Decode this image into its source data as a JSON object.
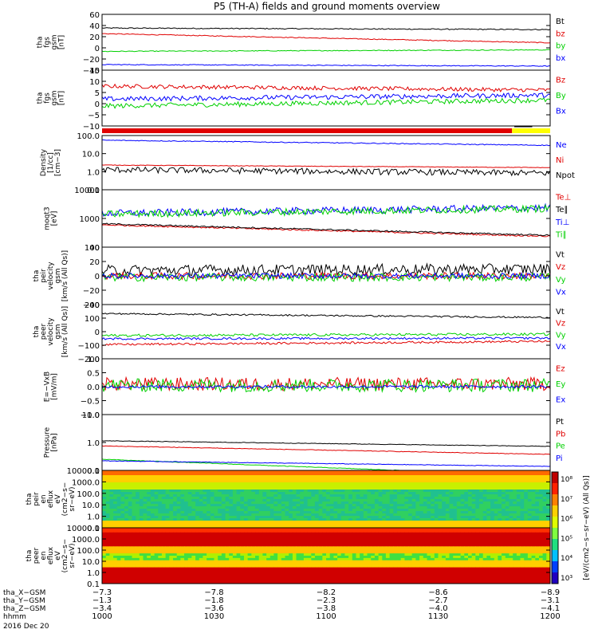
{
  "title": "P5 (TH-A) fields and ground moments overview",
  "colors": {
    "black": "#000000",
    "red": "#e00000",
    "green": "#00d000",
    "blue": "#0000ff",
    "yellow": "#ffff00"
  },
  "chart_data": [
    {
      "type": "line",
      "ylabel": [
        "tha",
        "fgs",
        "gsm",
        "[nT]"
      ],
      "yticks": [
        "60",
        "40",
        "20",
        "0",
        "−20",
        "−40"
      ],
      "ylim": [
        -45,
        65
      ],
      "series": [
        {
          "name": "Bt",
          "color": "black",
          "base": 38,
          "noise": 1,
          "trend": -3
        },
        {
          "name": "bz",
          "color": "red",
          "base": 27,
          "noise": 0.8,
          "trend": -18
        },
        {
          "name": "by",
          "color": "green",
          "base": -8,
          "noise": 0.8,
          "trend": 3
        },
        {
          "name": "bx",
          "color": "blue",
          "base": -34,
          "noise": 0.8,
          "trend": -3
        }
      ]
    },
    {
      "type": "line",
      "ylabel": [
        "tha",
        "fgs",
        "gsm",
        "[nT]"
      ],
      "yticks": [
        "15",
        "10",
        "5",
        "0",
        "−5",
        "−10"
      ],
      "ylim": [
        -13,
        15
      ],
      "series": [
        {
          "name": "Bz",
          "color": "red",
          "base": 7,
          "noise": 1,
          "trend": -2
        },
        {
          "name": "By",
          "color": "green",
          "base": -3,
          "noise": 1.2,
          "trend": 3
        },
        {
          "name": "Bx",
          "color": "blue",
          "base": 0.5,
          "noise": 1.2,
          "trend": 2
        }
      ]
    },
    {
      "type": "line",
      "ylabel": [
        "Density",
        "[1/cc]",
        "[cm−3]"
      ],
      "yticks": [
        "100.0",
        "10.0",
        "1.0",
        "0.1"
      ],
      "log": true,
      "ylim": [
        0.1,
        150
      ],
      "series": [
        {
          "name": "Ne",
          "color": "blue",
          "base": 80,
          "noise": 0.05,
          "trend": -0.3
        },
        {
          "name": "Ni",
          "color": "red",
          "base": 2.8,
          "noise": 0.03,
          "trend": -0.15
        },
        {
          "name": "Npot",
          "color": "black",
          "base": 1.5,
          "noise": 0.35,
          "trend": -0.2
        }
      ]
    },
    {
      "type": "line",
      "ylabel": [
        "moqt3",
        "[eV]"
      ],
      "yticks": [
        "10000",
        "1000",
        "100"
      ],
      "log": true,
      "ylim": [
        100,
        10000
      ],
      "series": [
        {
          "name": "Te⊥",
          "color": "red",
          "base": 600,
          "noise": 0.05,
          "trend": -0.4
        },
        {
          "name": "Te∥",
          "color": "black",
          "base": 650,
          "noise": 0.05,
          "trend": -0.4
        },
        {
          "name": "Ti⊥",
          "color": "blue",
          "base": 1500,
          "noise": 0.25,
          "trend": 0.2
        },
        {
          "name": "Ti∥",
          "color": "green",
          "base": 1400,
          "noise": 0.25,
          "trend": 0.2
        }
      ]
    },
    {
      "type": "line",
      "ylabel": [
        "tha",
        "peir",
        "velocity",
        "gsm",
        "[km/s (All Qs)]"
      ],
      "yticks": [
        "40",
        "20",
        "0",
        "−20",
        "−40"
      ],
      "ylim": [
        -42,
        42
      ],
      "series": [
        {
          "name": "Vt",
          "color": "black",
          "base": 8,
          "noise": 8,
          "trend": 2
        },
        {
          "name": "Vz",
          "color": "red",
          "base": 0,
          "noise": 5,
          "trend": 0
        },
        {
          "name": "Vy",
          "color": "green",
          "base": -2,
          "noise": 6,
          "trend": 0
        },
        {
          "name": "Vx",
          "color": "blue",
          "base": 0,
          "noise": 4,
          "trend": 0
        }
      ]
    },
    {
      "type": "line",
      "ylabel": [
        "tha",
        "peer",
        "velocity",
        "gsm",
        "[km/s (All Qs)]"
      ],
      "yticks": [
        "200",
        "100",
        "0",
        "−100",
        "−200"
      ],
      "ylim": [
        -210,
        210
      ],
      "series": [
        {
          "name": "Vt",
          "color": "black",
          "base": 140,
          "noise": 6,
          "trend": -30
        },
        {
          "name": "Vz",
          "color": "red",
          "base": -100,
          "noise": 8,
          "trend": 25
        },
        {
          "name": "Vy",
          "color": "green",
          "base": -30,
          "noise": 10,
          "trend": 10
        },
        {
          "name": "Vx",
          "color": "blue",
          "base": -55,
          "noise": 8,
          "trend": 5
        }
      ]
    },
    {
      "type": "line",
      "ylabel": [
        "E=−VxB",
        "[mV/m]"
      ],
      "yticks": [
        "1.0",
        "0.5",
        "0.0",
        "−0.5",
        "−1.0"
      ],
      "ylim": [
        -1.05,
        1.05
      ],
      "series": [
        {
          "name": "Ez",
          "color": "red",
          "base": 0.1,
          "noise": 0.25,
          "trend": 0
        },
        {
          "name": "Ey",
          "color": "green",
          "base": 0.05,
          "noise": 0.25,
          "trend": 0
        },
        {
          "name": "Ex",
          "color": "blue",
          "base": 0,
          "noise": 0.05,
          "trend": 0
        }
      ]
    },
    {
      "type": "line",
      "ylabel": [
        "Pressure",
        "[nPa]"
      ],
      "yticks": [
        "10.0",
        "1.0",
        "0.1"
      ],
      "log": true,
      "ylim": [
        0.1,
        10
      ],
      "series": [
        {
          "name": "Pt",
          "color": "black",
          "base": 1.15,
          "noise": 0.02,
          "trend": -0.2
        },
        {
          "name": "Pb",
          "color": "red",
          "base": 0.75,
          "noise": 0.02,
          "trend": -0.3
        },
        {
          "name": "Pe",
          "color": "green",
          "base": 0.25,
          "noise": 0.02,
          "trend": -0.6
        },
        {
          "name": "Pi",
          "color": "blue",
          "base": 0.22,
          "noise": 0.02,
          "trend": -0.2
        }
      ]
    },
    {
      "type": "heatmap",
      "ylabel": [
        "tha",
        "peir",
        "en",
        "eflux",
        "eV",
        "(cm2−s−",
        "sr−eV)"
      ],
      "yticks": [
        "10000.0",
        "1000.0",
        "100.0",
        "10.0",
        "1.0",
        "0.1"
      ],
      "log": true
    },
    {
      "type": "heatmap",
      "ylabel": [
        "tha",
        "peer",
        "en",
        "eflux",
        "eV",
        "(cm2−s−",
        "sr−eV)"
      ],
      "yticks": [
        "10000.0",
        "1000.0",
        "100.0",
        "10.0",
        "1.0",
        "0.1"
      ],
      "log": true
    }
  ],
  "colorbar": {
    "ticks": [
      "10⁸",
      "10⁷",
      "10⁶",
      "10⁵",
      "10⁴",
      "10³"
    ],
    "label": "[eV/(cm2−s−sr−eV) (All Qs)]"
  },
  "x_axis": {
    "rows": [
      {
        "label": "tha_X−GSM",
        "values": [
          "−7.3",
          "−7.8",
          "−8.2",
          "−8.6",
          "−8.9"
        ]
      },
      {
        "label": "tha_Y−GSM",
        "values": [
          "−1.3",
          "−1.8",
          "−2.3",
          "−2.7",
          "−3.1"
        ]
      },
      {
        "label": "tha_Z−GSM",
        "values": [
          "−3.4",
          "−3.6",
          "−3.8",
          "−4.0",
          "−4.1"
        ]
      },
      {
        "label": "hhmm",
        "values": [
          "1000",
          "1030",
          "1100",
          "1130",
          "1200"
        ]
      }
    ],
    "date": "2016 Dec 20"
  }
}
